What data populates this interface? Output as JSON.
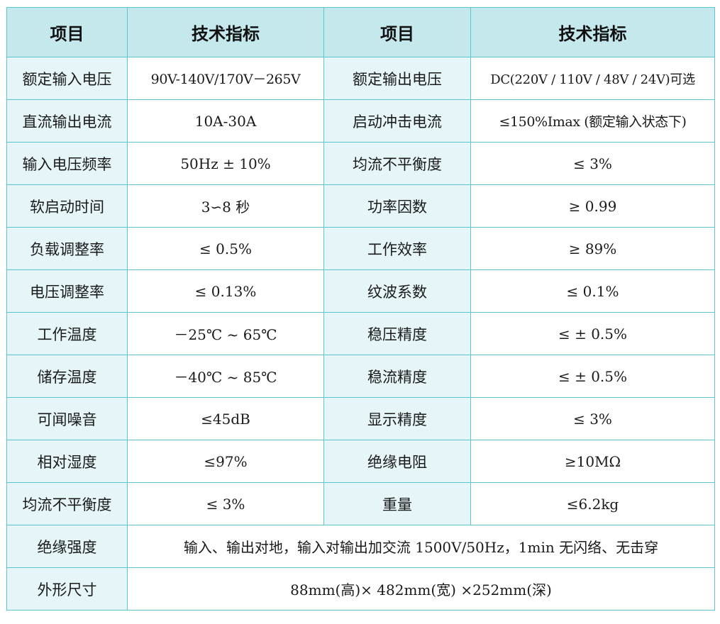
{
  "header": {
    "col1": "项目",
    "col2": "技术指标",
    "col3": "项目",
    "col4": "技术指标"
  },
  "rows": [
    {
      "item1": "额定输入电压",
      "spec1": "90V-140V/170V－265V",
      "item2": "额定输出电压",
      "spec2": "DC(220V / 110V / 48V / 24V)可选"
    },
    {
      "item1": "直流输出电流",
      "spec1": "10A-30A",
      "item2": "启动冲击电流",
      "spec2": "≤150%Imax (额定输入状态下)"
    },
    {
      "item1": "输入电压频率",
      "spec1": "50Hz ± 10%",
      "item2": "均流不平衡度",
      "spec2": "≤  3%"
    },
    {
      "item1": "软启动时间",
      "spec1": "3∽8 秒",
      "item2": "功率因数",
      "spec2": "≥  0.99"
    },
    {
      "item1": "负载调整率",
      "spec1": "≤  0.5%",
      "item2": "工作效率",
      "spec2": "≥  89%"
    },
    {
      "item1": "电压调整率",
      "spec1": "≤  0.13%",
      "item2": "纹波系数",
      "spec2": "≤  0.1%"
    },
    {
      "item1": "工作温度",
      "spec1": "－25℃ ~ 65℃",
      "item2": "稳压精度",
      "spec2": "≤ ± 0.5%"
    },
    {
      "item1": "储存温度",
      "spec1": "－40℃ ~ 85℃",
      "item2": "稳流精度",
      "spec2": "≤   ± 0.5%"
    },
    {
      "item1": "可闻噪音",
      "spec1": "≤45dB",
      "item2": "显示精度",
      "spec2": "≤  3%"
    },
    {
      "item1": "相对湿度",
      "spec1": "≤97%",
      "item2": "绝缘电阻",
      "spec2": "≥10MΩ"
    },
    {
      "item1": "均流不平衡度",
      "spec1": "≤  3%",
      "item2": "重量",
      "spec2": "≤6.2kg"
    }
  ],
  "wide_rows": [
    {
      "item": "绝缘强度",
      "spec": "输入、输出对地，输入对输出加交流 1500V/50Hz，1min 无闪络、无击穿"
    },
    {
      "item": "外形尺寸",
      "spec": "88mm(高)×  482mm(宽)  ×252mm(深)"
    }
  ]
}
